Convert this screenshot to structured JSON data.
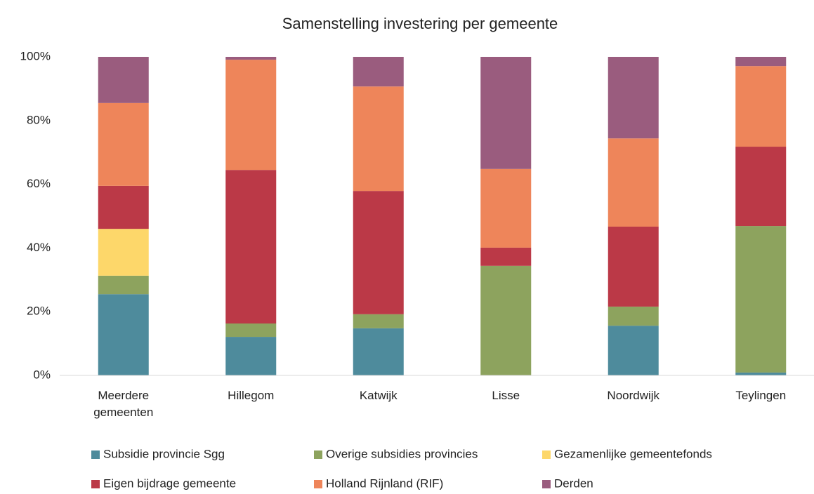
{
  "chart_data": {
    "type": "stacked_bar",
    "title": "Samenstelling investering per gemeente",
    "categories": [
      "Meerdere gemeenten",
      "Hillegom",
      "Katwijk",
      "Lisse",
      "Noordwijk",
      "Teylingen"
    ],
    "series": [
      {
        "name": "Subsidie provincie Sgg",
        "color": "#4e8b9c",
        "values": [
          25.5,
          12.1,
          14.8,
          0,
          15.6,
          0.9
        ]
      },
      {
        "name": "Overige subsidies provincies",
        "color": "#8da35e",
        "values": [
          5.8,
          4.2,
          4.4,
          34.4,
          6.0,
          46.0
        ]
      },
      {
        "name": "Gezamenlijke gemeentefonds",
        "color": "#fdd76a",
        "values": [
          14.7,
          0,
          0,
          0,
          0,
          0
        ]
      },
      {
        "name": "Eigen bijdrage gemeente",
        "color": "#bb3947",
        "values": [
          13.5,
          48.2,
          38.7,
          5.7,
          25.1,
          24.9
        ]
      },
      {
        "name": "Holland Rijnland (RIF)",
        "color": "#ee855a",
        "values": [
          26.0,
          34.6,
          32.8,
          24.7,
          27.7,
          25.3
        ]
      },
      {
        "name": "Derden",
        "color": "#9a5c7e",
        "values": [
          14.5,
          0.9,
          9.3,
          35.2,
          25.6,
          2.9
        ]
      }
    ],
    "ylim": [
      0,
      100
    ],
    "yticks": [
      {
        "value": 0,
        "label": "0%"
      },
      {
        "value": 20,
        "label": "20%"
      },
      {
        "value": 40,
        "label": "40%"
      },
      {
        "value": 60,
        "label": "60%"
      },
      {
        "value": 80,
        "label": "80%"
      },
      {
        "value": 100,
        "label": "100%"
      }
    ],
    "grid": false,
    "legend": "bottom"
  }
}
